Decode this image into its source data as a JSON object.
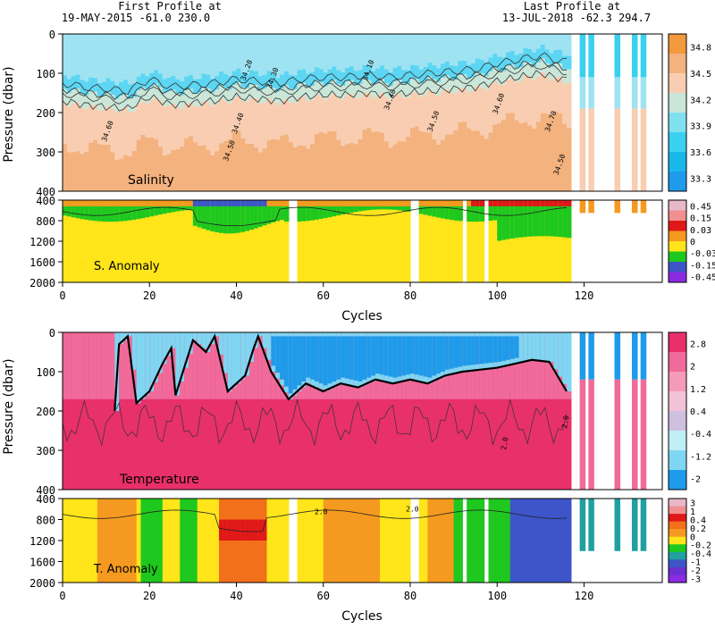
{
  "header": {
    "first_profile_title": "First Profile at",
    "first_profile_detail": "19-MAY-2015   -61.0 230.0",
    "last_profile_title": "Last Profile at",
    "last_profile_detail": "13-JUL-2018   -62.3 294.7"
  },
  "colors": {
    "cold_blue": "#1e9bea",
    "light_cyan": "#9fe3f2",
    "pink": "#f06a9a",
    "hot_red": "#e8306a",
    "salinity_orange": "#f3b27e",
    "salinity_light": "#f9cdb1",
    "anomaly_yellow": "#ffe51a",
    "anomaly_green": "#1ec81e",
    "anomaly_red": "#e01818",
    "anomaly_blue": "#3d55c8"
  },
  "chart_data": [
    {
      "type": "heatmap",
      "panel_label": "Salinity",
      "ylabel": "Pressure (dbar)",
      "xlim": [
        0,
        138
      ],
      "ylim": [
        400,
        0
      ],
      "y_ticks": [
        "0",
        "100",
        "200",
        "300",
        "400"
      ],
      "x_ticks": [
        "0",
        "20",
        "40",
        "60",
        "80",
        "100",
        "120"
      ],
      "colorbar_labels": [
        "34.8",
        "34.5",
        "34.2",
        "33.9",
        "33.6",
        "33.3"
      ],
      "colorbar_colors": [
        "#f39a3c",
        "#f3b27e",
        "#f9cdb1",
        "#c9e6d8",
        "#7fe0f0",
        "#3ad0f0",
        "#1ab8ea",
        "#1e9bea"
      ],
      "contour_labels": [
        "34.60",
        "34.40",
        "34.20",
        "34.30",
        "34.10",
        "34.50",
        "34.40",
        "34.50",
        "34.60",
        "34.70",
        "34.50"
      ],
      "mixed_layer_depth": [
        [
          0,
          150
        ],
        [
          5,
          160
        ],
        [
          10,
          165
        ],
        [
          15,
          170
        ],
        [
          20,
          140
        ],
        [
          25,
          160
        ],
        [
          30,
          155
        ],
        [
          35,
          150
        ],
        [
          40,
          140
        ],
        [
          45,
          145
        ],
        [
          50,
          150
        ],
        [
          55,
          140
        ],
        [
          60,
          135
        ],
        [
          65,
          135
        ],
        [
          70,
          130
        ],
        [
          75,
          135
        ],
        [
          80,
          130
        ],
        [
          85,
          125
        ],
        [
          90,
          120
        ],
        [
          95,
          115
        ],
        [
          100,
          100
        ],
        [
          105,
          90
        ],
        [
          110,
          80
        ],
        [
          115,
          95
        ]
      ]
    },
    {
      "type": "heatmap",
      "panel_label": "S. Anomaly",
      "xlim": [
        0,
        138
      ],
      "ylim": [
        2000,
        400
      ],
      "y_ticks": [
        "400",
        "800",
        "1200",
        "1600",
        "2000"
      ],
      "x_ticks": [
        "0",
        "20",
        "40",
        "60",
        "80",
        "100",
        "120"
      ],
      "xlabel": "Cycles",
      "colorbar_labels": [
        "0.45",
        "0.15",
        "0.03",
        "0",
        "-0.03",
        "-0.15",
        "-0.45"
      ],
      "colorbar_colors": [
        "#e8b8c8",
        "#f09090",
        "#e01818",
        "#f59a20",
        "#ffe51a",
        "#1ec81e",
        "#3d55c8",
        "#8a2be2"
      ]
    },
    {
      "type": "heatmap",
      "panel_label": "Temperature",
      "ylabel": "Pressure (dbar)",
      "xlim": [
        0,
        138
      ],
      "ylim": [
        400,
        0
      ],
      "y_ticks": [
        "0",
        "100",
        "200",
        "300",
        "400"
      ],
      "x_ticks": [
        "0",
        "20",
        "40",
        "60",
        "80",
        "100",
        "120"
      ],
      "contour_labels": [
        "2.0",
        "2.0"
      ],
      "colorbar_labels": [
        "2.8",
        "2",
        "1.2",
        "0.4",
        "-0.4",
        "-1.2",
        "-2"
      ],
      "colorbar_colors": [
        "#e8306a",
        "#f06a9a",
        "#f59ab8",
        "#f2c2d6",
        "#d0c0e0",
        "#bfeef6",
        "#7fd6f2",
        "#1e9bea"
      ],
      "zero_isotherm_depth": [
        [
          12,
          200
        ],
        [
          13,
          30
        ],
        [
          15,
          10
        ],
        [
          17,
          180
        ],
        [
          20,
          150
        ],
        [
          23,
          80
        ],
        [
          25,
          40
        ],
        [
          26,
          160
        ],
        [
          28,
          90
        ],
        [
          30,
          20
        ],
        [
          33,
          50
        ],
        [
          35,
          10
        ],
        [
          38,
          150
        ],
        [
          42,
          110
        ],
        [
          44,
          40
        ],
        [
          45,
          10
        ],
        [
          48,
          100
        ],
        [
          52,
          170
        ],
        [
          56,
          130
        ],
        [
          60,
          150
        ],
        [
          64,
          130
        ],
        [
          68,
          140
        ],
        [
          72,
          120
        ],
        [
          76,
          130
        ],
        [
          80,
          120
        ],
        [
          84,
          130
        ],
        [
          88,
          110
        ],
        [
          92,
          100
        ],
        [
          96,
          95
        ],
        [
          100,
          90
        ],
        [
          104,
          80
        ],
        [
          108,
          70
        ],
        [
          112,
          75
        ],
        [
          116,
          150
        ]
      ]
    },
    {
      "type": "heatmap",
      "panel_label": "T. Anomaly",
      "xlim": [
        0,
        138
      ],
      "ylim": [
        2000,
        400
      ],
      "y_ticks": [
        "400",
        "800",
        "1200",
        "1600",
        "2000"
      ],
      "x_ticks": [
        "0",
        "20",
        "40",
        "60",
        "80",
        "100",
        "120"
      ],
      "xlabel": "Cycles",
      "contour_labels": [
        "2.0",
        "2.0"
      ],
      "colorbar_labels": [
        "3",
        "1",
        "0.4",
        "0.2",
        "0",
        "-0.2",
        "-0.4",
        "-1",
        "-2",
        "-3"
      ],
      "colorbar_colors": [
        "#e8b8c8",
        "#f09090",
        "#e01818",
        "#f2701a",
        "#f59a20",
        "#ffe51a",
        "#1ec81e",
        "#20a0a0",
        "#3d55c8",
        "#6a30d0",
        "#8a2be2"
      ]
    }
  ]
}
